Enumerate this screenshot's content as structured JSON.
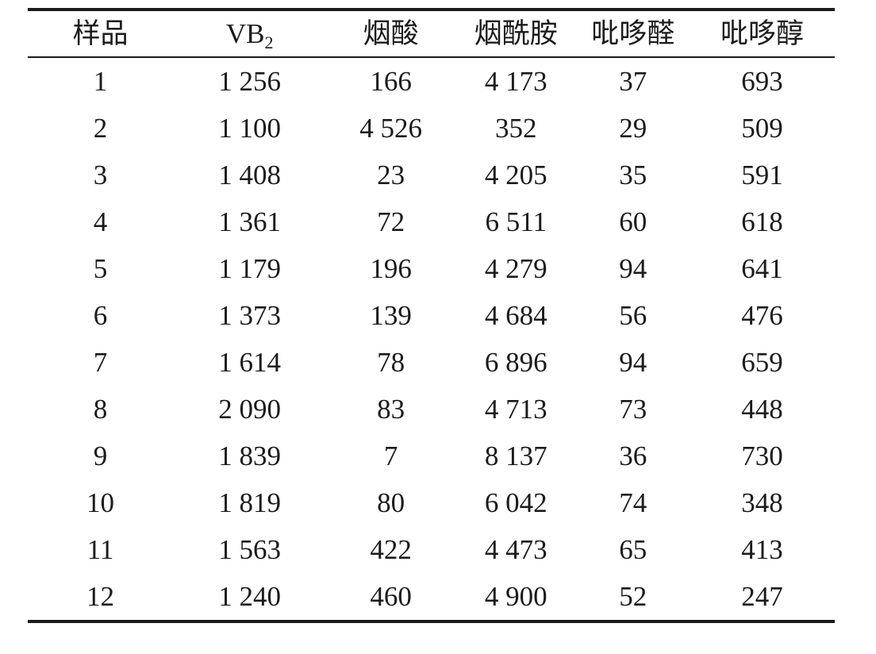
{
  "colors": {
    "text": "#1b1b1b",
    "rule": "#1b1b1b",
    "background": "#ffffff"
  },
  "table": {
    "headers": [
      {
        "id": "sample",
        "text": "样品",
        "sub": ""
      },
      {
        "id": "vb2",
        "text": "VB",
        "sub": "2"
      },
      {
        "id": "niacin",
        "text": "烟酸",
        "sub": ""
      },
      {
        "id": "nicotinamide",
        "text": "烟酰胺",
        "sub": ""
      },
      {
        "id": "pyridoxal",
        "text": "吡哆醛",
        "sub": ""
      },
      {
        "id": "pyridoxine",
        "text": "吡哆醇",
        "sub": ""
      }
    ],
    "rows": [
      [
        "1",
        "1 256",
        "166",
        "4 173",
        "37",
        "693"
      ],
      [
        "2",
        "1 100",
        "4 526",
        "352",
        "29",
        "509"
      ],
      [
        "3",
        "1 408",
        "23",
        "4 205",
        "35",
        "591"
      ],
      [
        "4",
        "1 361",
        "72",
        "6 511",
        "60",
        "618"
      ],
      [
        "5",
        "1 179",
        "196",
        "4 279",
        "94",
        "641"
      ],
      [
        "6",
        "1 373",
        "139",
        "4 684",
        "56",
        "476"
      ],
      [
        "7",
        "1 614",
        "78",
        "6 896",
        "94",
        "659"
      ],
      [
        "8",
        "2 090",
        "83",
        "4 713",
        "73",
        "448"
      ],
      [
        "9",
        "1 839",
        "7",
        "8 137",
        "36",
        "730"
      ],
      [
        "10",
        "1 819",
        "80",
        "6 042",
        "74",
        "348"
      ],
      [
        "11",
        "1 563",
        "422",
        "4 473",
        "65",
        "413"
      ],
      [
        "12",
        "1 240",
        "460",
        "4 900",
        "52",
        "247"
      ]
    ]
  }
}
